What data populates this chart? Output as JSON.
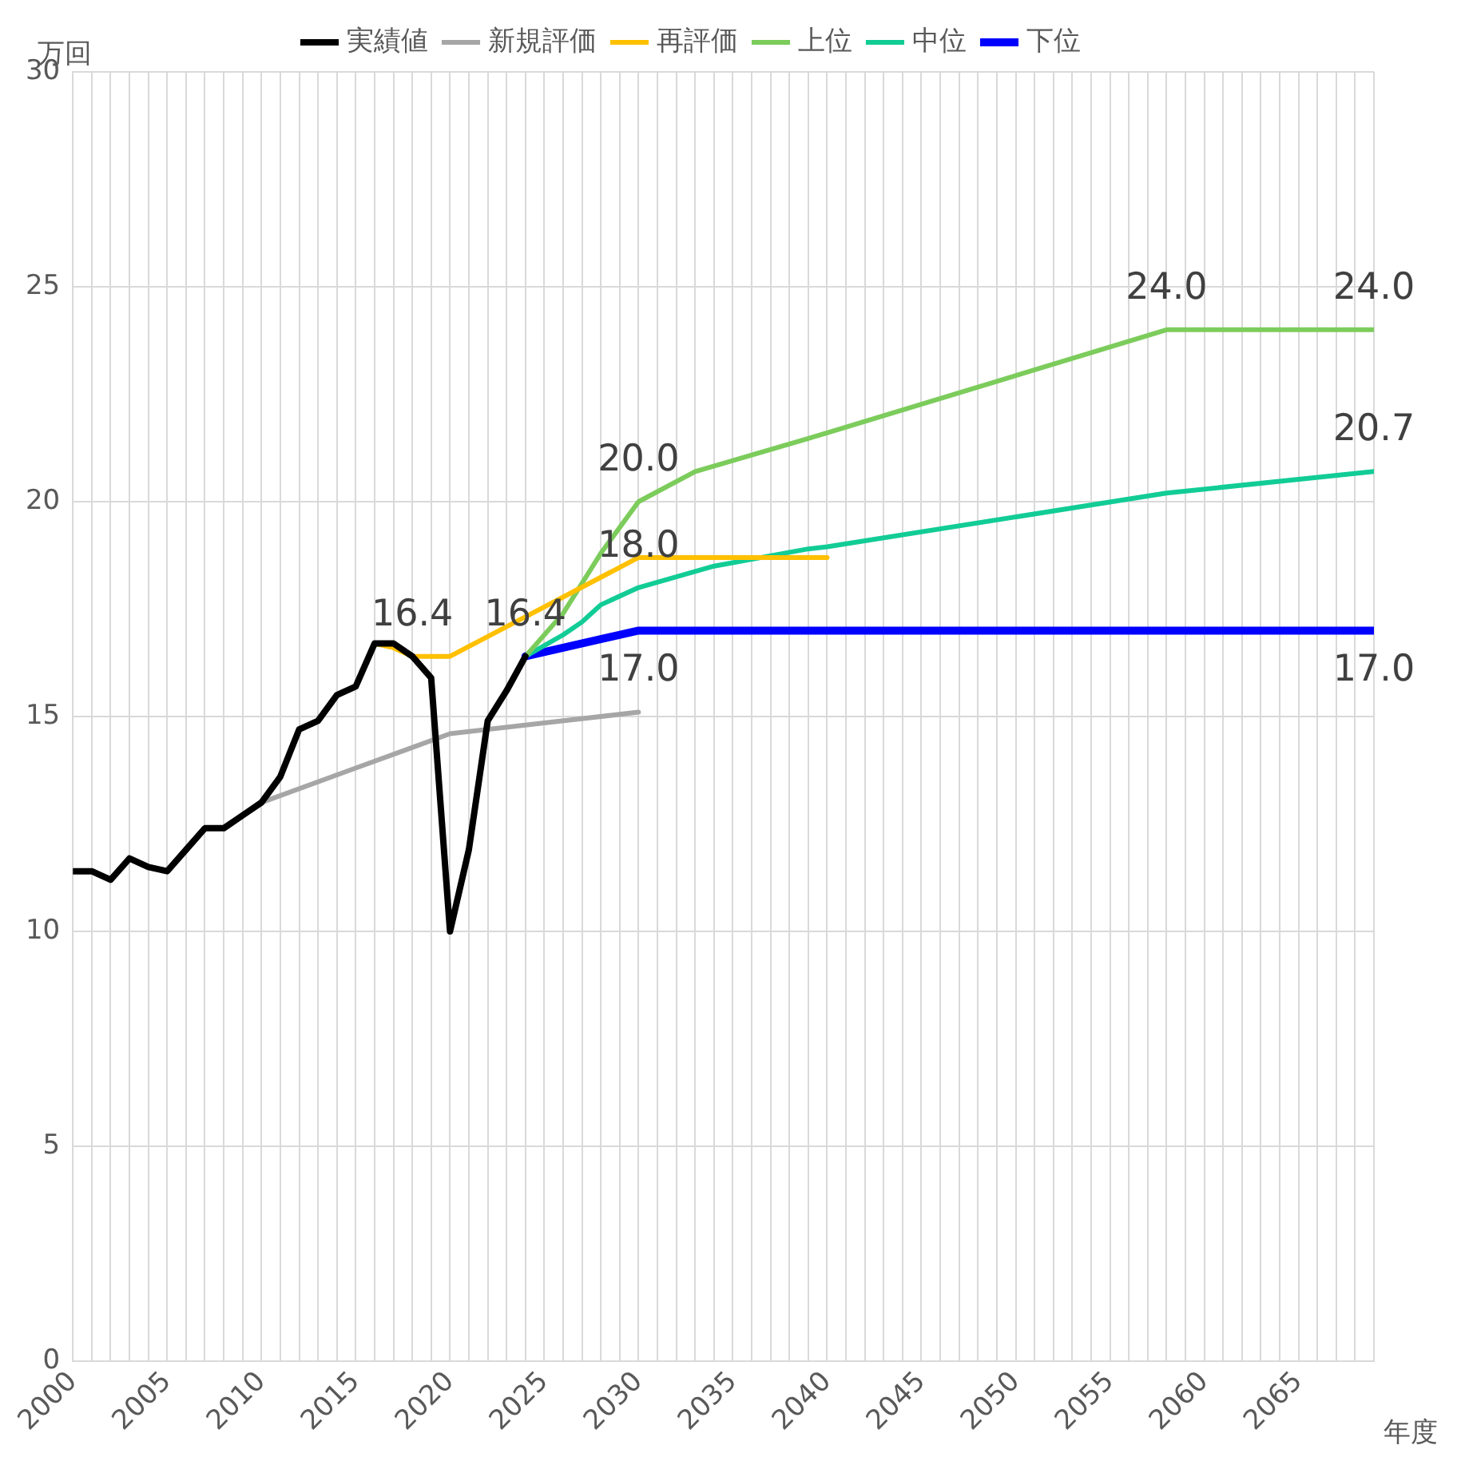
{
  "chart_data": {
    "type": "line",
    "xlabel": "年度",
    "ylabel": "万回",
    "xlim": [
      2000,
      2069
    ],
    "ylim": [
      0,
      30
    ],
    "yticks": [
      0,
      5,
      10,
      15,
      20,
      25,
      30
    ],
    "xticks": [
      2000,
      {
        "value": 2001,
        "label": null
      },
      {
        "value": 2002,
        "label": null
      },
      {
        "value": 2003,
        "label": null
      },
      {
        "value": 2004,
        "label": null
      },
      2005,
      {
        "value": 2006,
        "label": null
      },
      {
        "value": 2007,
        "label": null
      },
      {
        "value": 2008,
        "label": null
      },
      {
        "value": 2009,
        "label": null
      },
      2010,
      {
        "value": 2011,
        "label": null
      },
      {
        "value": 2012,
        "label": null
      },
      {
        "value": 2013,
        "label": null
      },
      {
        "value": 2014,
        "label": null
      },
      2015,
      {
        "value": 2016,
        "label": null
      },
      {
        "value": 2017,
        "label": null
      },
      {
        "value": 2018,
        "label": null
      },
      {
        "value": 2019,
        "label": null
      },
      2020,
      {
        "value": 2021,
        "label": null
      },
      {
        "value": 2022,
        "label": null
      },
      {
        "value": 2023,
        "label": null
      },
      {
        "value": 2024,
        "label": null
      },
      2025,
      {
        "value": 2026,
        "label": null
      },
      {
        "value": 2027,
        "label": null
      },
      {
        "value": 2028,
        "label": null
      },
      {
        "value": 2029,
        "label": null
      },
      2030,
      {
        "value": 2031,
        "label": null
      },
      {
        "value": 2032,
        "label": null
      },
      {
        "value": 2033,
        "label": null
      },
      {
        "value": 2034,
        "label": null
      },
      2035,
      {
        "value": 2036,
        "label": null
      },
      {
        "value": 2037,
        "label": null
      },
      {
        "value": 2038,
        "label": null
      },
      {
        "value": 2039,
        "label": null
      },
      2040,
      {
        "value": 2041,
        "label": null
      },
      {
        "value": 2042,
        "label": null
      },
      {
        "value": 2043,
        "label": null
      },
      {
        "value": 2044,
        "label": null
      },
      2045,
      {
        "value": 2046,
        "label": null
      },
      {
        "value": 2047,
        "label": null
      },
      {
        "value": 2048,
        "label": null
      },
      {
        "value": 2049,
        "label": null
      },
      2050,
      {
        "value": 2051,
        "label": null
      },
      {
        "value": 2052,
        "label": null
      },
      {
        "value": 2053,
        "label": null
      },
      {
        "value": 2054,
        "label": null
      },
      2055,
      {
        "value": 2056,
        "label": null
      },
      {
        "value": 2057,
        "label": null
      },
      {
        "value": 2058,
        "label": null
      },
      {
        "value": 2059,
        "label": null
      },
      2060,
      {
        "value": 2061,
        "label": null
      },
      {
        "value": 2062,
        "label": null
      },
      {
        "value": 2063,
        "label": null
      },
      {
        "value": 2064,
        "label": null
      },
      2065,
      {
        "value": 2066,
        "label": null
      },
      {
        "value": 2067,
        "label": null
      },
      {
        "value": 2068,
        "label": null
      },
      {
        "value": 2069,
        "label": null
      }
    ],
    "grid": true,
    "legend": "top",
    "marker": "none",
    "line_style": "solid",
    "series": [
      {
        "name": "実績値",
        "color": "#000000",
        "x": [
          2000,
          2001,
          2002,
          2003,
          2004,
          2005,
          2006,
          2007,
          2008,
          2009,
          2010,
          2011,
          2012,
          2013,
          2014,
          2015,
          2016,
          2017,
          2018,
          2019,
          2020,
          2021,
          2022,
          2023,
          2024
        ],
        "values": [
          11.4,
          11.4,
          11.2,
          11.7,
          11.5,
          11.4,
          11.9,
          12.4,
          12.4,
          12.7,
          13.0,
          13.6,
          14.7,
          14.9,
          15.5,
          15.7,
          16.7,
          16.7,
          16.4,
          15.9,
          10.0,
          11.9,
          14.9,
          15.6,
          16.4
        ]
      },
      {
        "name": "新規評価",
        "color": "#a6a6a6",
        "x": [
          2010,
          2015,
          2020,
          2025,
          2030
        ],
        "values": [
          13.0,
          13.8,
          14.6,
          14.85,
          15.1
        ]
      },
      {
        "name": "再評価",
        "color": "#ffc000",
        "x": [
          2016,
          2017,
          2018,
          2020,
          2030,
          2040
        ],
        "values": [
          16.7,
          16.6,
          16.4,
          16.4,
          18.7,
          18.7
        ]
      },
      {
        "name": "上位",
        "color": "#7ccc5c",
        "x": [
          2024,
          2026,
          2028,
          2030,
          2033,
          2040,
          2058,
          2069
        ],
        "values": [
          16.4,
          17.4,
          18.8,
          20.0,
          20.7,
          21.6,
          24.0,
          24.0
        ]
      },
      {
        "name": "中位",
        "color": "#12cc96",
        "x": [
          2024,
          2026,
          2027,
          2028,
          2030,
          2034,
          2039,
          2040,
          2058,
          2069
        ],
        "values": [
          16.4,
          16.9,
          17.2,
          17.6,
          18.0,
          18.5,
          18.9,
          18.95,
          20.2,
          20.7
        ]
      },
      {
        "name": "下位",
        "color": "#0000ff",
        "x": [
          2024,
          2030,
          2069
        ],
        "values": [
          16.4,
          17.0,
          17.0
        ]
      }
    ],
    "annotations": [
      {
        "text": "16.4",
        "x": 2018,
        "y": 16.4
      },
      {
        "text": "16.4",
        "x": 2024,
        "y": 16.4
      },
      {
        "text": "20.0",
        "x": 2030,
        "y": 20.0
      },
      {
        "text": "18.0",
        "x": 2030,
        "y": 18.0
      },
      {
        "text": "17.0",
        "x": 2030,
        "y": 17.0
      },
      {
        "text": "24.0",
        "x": 2058,
        "y": 24.0
      },
      {
        "text": "24.0",
        "x": 2069,
        "y": 24.0
      },
      {
        "text": "20.7",
        "x": 2069,
        "y": 20.7
      },
      {
        "text": "17.0",
        "x": 2069,
        "y": 17.0
      }
    ]
  }
}
